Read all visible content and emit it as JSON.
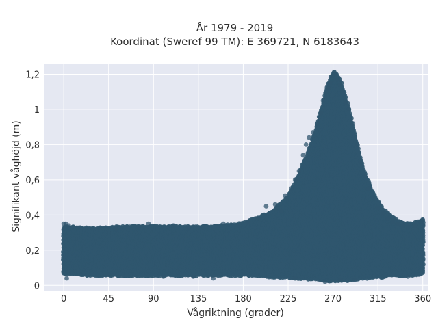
{
  "chart_data": {
    "type": "scatter",
    "title": "År 1979 - 2019",
    "subtitle": "Koordinat (Sweref 99 TM): E 369721, N 6183643",
    "xlabel": "Vågriktning (grader)",
    "ylabel": "Signifikant våghöjd (m)",
    "xlim": [
      -20,
      365
    ],
    "ylim": [
      -0.03,
      1.26
    ],
    "x_ticks": [
      0,
      45,
      90,
      135,
      180,
      225,
      270,
      315,
      360
    ],
    "x_tick_labels": [
      "0",
      "45",
      "90",
      "135",
      "180",
      "225",
      "270",
      "315",
      "360"
    ],
    "y_ticks": [
      0,
      0.2,
      0.4,
      0.6,
      0.8,
      1.0,
      1.2
    ],
    "y_tick_labels": [
      "0",
      "0,2",
      "0,4",
      "0,6",
      "0,8",
      "1",
      "1,2"
    ],
    "grid": true,
    "legend": "none",
    "marker_color": "#30566e",
    "background_color": "#e5e8f2",
    "series": [
      {
        "name": "",
        "envelope": {
          "x": [
            0,
            30,
            60,
            90,
            120,
            150,
            180,
            195,
            210,
            225,
            235,
            245,
            255,
            262,
            268,
            272,
            278,
            285,
            292,
            300,
            310,
            320,
            330,
            340,
            350,
            360
          ],
          "y_min": [
            0.07,
            0.06,
            0.06,
            0.06,
            0.06,
            0.06,
            0.06,
            0.06,
            0.05,
            0.05,
            0.04,
            0.04,
            0.04,
            0.03,
            0.03,
            0.03,
            0.03,
            0.03,
            0.04,
            0.04,
            0.05,
            0.05,
            0.06,
            0.06,
            0.06,
            0.07
          ],
          "y_max": [
            0.33,
            0.32,
            0.33,
            0.33,
            0.33,
            0.33,
            0.35,
            0.38,
            0.42,
            0.5,
            0.62,
            0.75,
            0.92,
            1.08,
            1.18,
            1.21,
            1.15,
            1.02,
            0.85,
            0.66,
            0.52,
            0.43,
            0.38,
            0.35,
            0.35,
            0.37
          ]
        },
        "points": [
          [
            0,
            0.35
          ],
          [
            2,
            0.35
          ],
          [
            5,
            0.34
          ],
          [
            3,
            0.04
          ],
          [
            45,
            0.06
          ],
          [
            52,
            0.32
          ],
          [
            75,
            0.33
          ],
          [
            85,
            0.35
          ],
          [
            100,
            0.05
          ],
          [
            110,
            0.34
          ],
          [
            125,
            0.33
          ],
          [
            130,
            0.05
          ],
          [
            140,
            0.33
          ],
          [
            150,
            0.04
          ],
          [
            160,
            0.35
          ],
          [
            175,
            0.34
          ],
          [
            185,
            0.36
          ],
          [
            195,
            0.38
          ],
          [
            203,
            0.45
          ],
          [
            212,
            0.46
          ],
          [
            218,
            0.42
          ],
          [
            222,
            0.51
          ],
          [
            228,
            0.55
          ],
          [
            232,
            0.6
          ],
          [
            236,
            0.65
          ],
          [
            240,
            0.74
          ],
          [
            243,
            0.8
          ],
          [
            246,
            0.84
          ],
          [
            250,
            0.87
          ],
          [
            254,
            0.92
          ],
          [
            258,
            0.98
          ],
          [
            260,
            1.05
          ],
          [
            263,
            1.1
          ],
          [
            265,
            1.12
          ],
          [
            267,
            1.15
          ],
          [
            269,
            1.19
          ],
          [
            271,
            1.21
          ],
          [
            273,
            1.2
          ],
          [
            275,
            1.17
          ],
          [
            277,
            1.14
          ],
          [
            280,
            1.1
          ],
          [
            283,
            1.04
          ],
          [
            286,
            1.0
          ],
          [
            290,
            0.92
          ],
          [
            294,
            0.8
          ],
          [
            298,
            0.7
          ],
          [
            302,
            0.62
          ],
          [
            306,
            0.55
          ],
          [
            310,
            0.5
          ],
          [
            315,
            0.44
          ],
          [
            320,
            0.41
          ],
          [
            325,
            0.38
          ],
          [
            330,
            0.36
          ],
          [
            335,
            0.35
          ],
          [
            340,
            0.34
          ],
          [
            345,
            0.33
          ],
          [
            352,
            0.34
          ],
          [
            358,
            0.36
          ],
          [
            360,
            0.37
          ],
          [
            262,
            0.02
          ],
          [
            278,
            0.03
          ],
          [
            292,
            0.03
          ],
          [
            232,
            0.04
          ],
          [
            345,
            0.05
          ]
        ]
      }
    ]
  }
}
